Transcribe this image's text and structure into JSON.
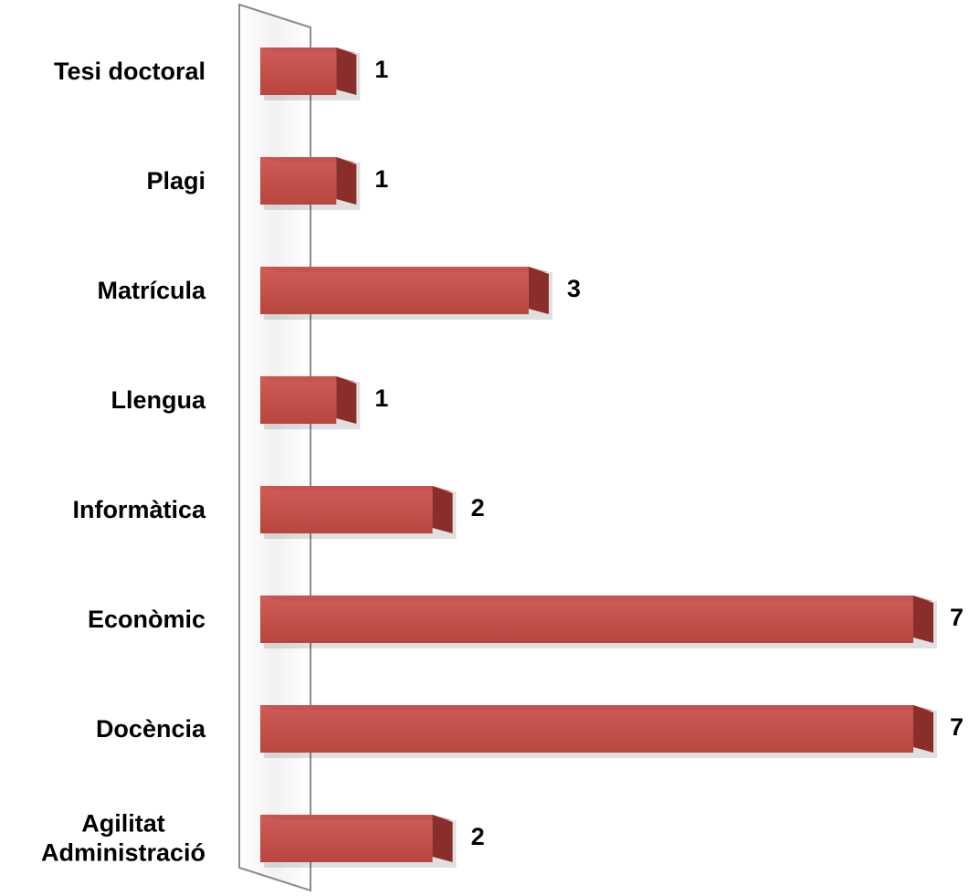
{
  "chart_data": {
    "type": "bar",
    "orientation": "horizontal",
    "categories": [
      "Tesi doctoral",
      "Plagi",
      "Matrícula",
      "Llengua",
      "Informàtica",
      "Econòmic",
      "Docència",
      "Agilitat\nAdministració"
    ],
    "values": [
      1,
      1,
      3,
      1,
      2,
      7,
      7,
      2
    ],
    "color": "#c0504d"
  }
}
